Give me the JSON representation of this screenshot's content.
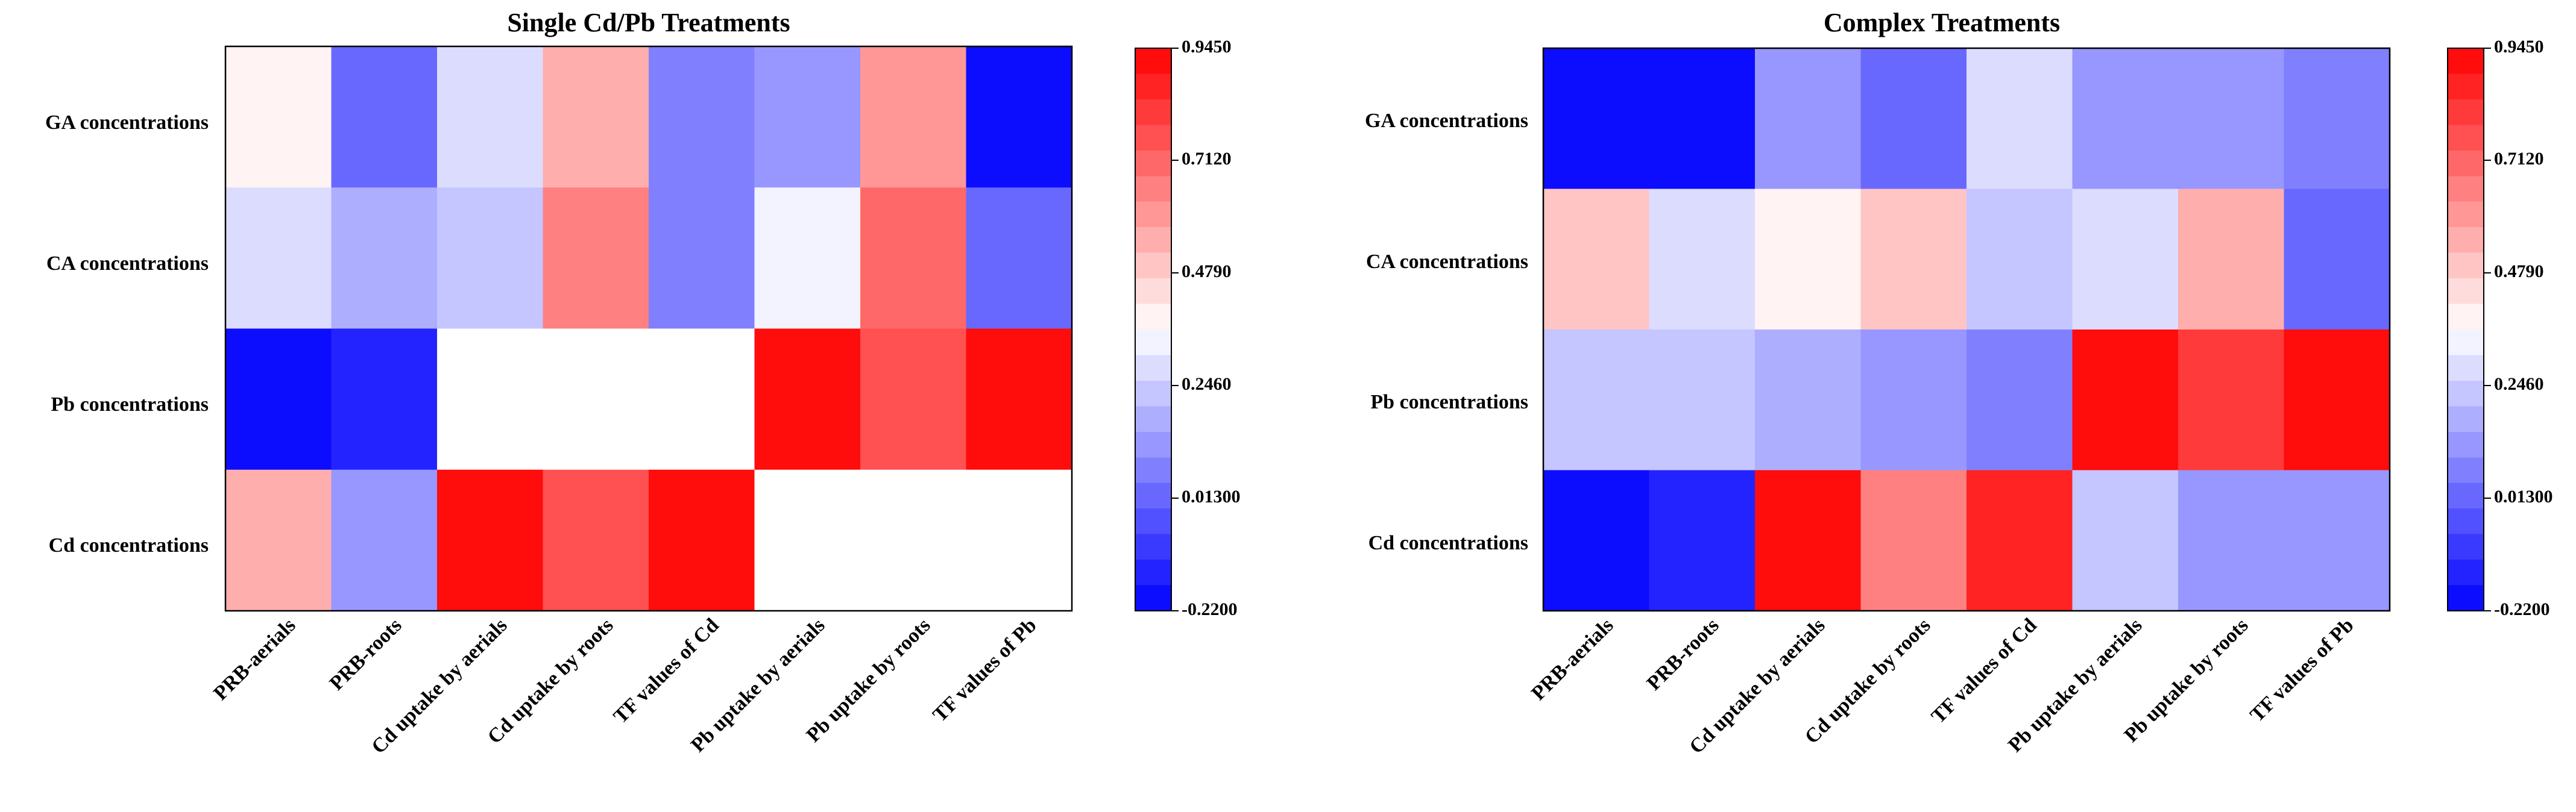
{
  "figure": {
    "background": "#ffffff",
    "colormap": {
      "name": "bwr",
      "low": "#0000ff",
      "mid": "#ffffff",
      "high": "#ff0000",
      "levels": 22
    }
  },
  "chart_data": [
    {
      "type": "heatmap",
      "title": "Single Cd/Pb Treatments",
      "xlabel": "",
      "ylabel": "",
      "x_categories": [
        "PRB-aerials",
        "PRB-roots",
        "Cd uptake by aerials",
        "Cd uptake by roots",
        "TF values of Cd",
        "Pb uptake by aerials",
        "Pb uptake by roots",
        "TF values of Pb"
      ],
      "y_categories": [
        "GA concentrations",
        "CA concentrations",
        "Pb concentrations",
        "Cd concentrations"
      ],
      "values": [
        [
          0.38,
          0.02,
          0.26,
          0.56,
          0.07,
          0.12,
          0.6,
          -0.22
        ],
        [
          0.26,
          0.19,
          0.24,
          0.63,
          0.05,
          0.34,
          0.71,
          0.02
        ],
        [
          -0.22,
          -0.15,
          null,
          null,
          null,
          0.95,
          0.76,
          0.92
        ],
        [
          0.55,
          0.14,
          0.945,
          0.76,
          0.94,
          null,
          null,
          null
        ]
      ],
      "colorbar": {
        "vmin": -0.22,
        "vmax": 0.945,
        "ticks": [
          0.945,
          0.712,
          0.479,
          0.246,
          0.013,
          -0.22
        ],
        "tick_labels": [
          "0.9450",
          "0.7120",
          "0.4790",
          "0.2460",
          "0.01300",
          "-0.2200"
        ]
      },
      "grid": false
    },
    {
      "type": "heatmap",
      "title": "Complex Treatments",
      "xlabel": "",
      "ylabel": "",
      "x_categories": [
        "PRB-aerials",
        "PRB-roots",
        "Cd uptake by aerials",
        "Cd uptake by roots",
        "TF values of Cd",
        "Pb uptake by aerials",
        "Pb uptake by roots",
        "TF values of Pb"
      ],
      "y_categories": [
        "GA concentrations",
        "CA concentrations",
        "Pb concentrations",
        "Cd concentrations"
      ],
      "values": [
        [
          -0.22,
          -0.19,
          0.13,
          0.03,
          0.27,
          0.14,
          0.14,
          0.09
        ],
        [
          0.51,
          0.27,
          0.37,
          0.5,
          0.24,
          0.27,
          0.53,
          0.03
        ],
        [
          0.25,
          0.25,
          0.2,
          0.13,
          0.06,
          0.945,
          0.8,
          0.945
        ],
        [
          -0.22,
          -0.14,
          0.9,
          0.67,
          0.87,
          0.21,
          0.14,
          0.1
        ]
      ],
      "colorbar": {
        "vmin": -0.22,
        "vmax": 0.945,
        "ticks": [
          0.945,
          0.712,
          0.479,
          0.246,
          0.013,
          -0.22
        ],
        "tick_labels": [
          "0.9450",
          "0.7120",
          "0.4790",
          "0.2460",
          "0.01300",
          "-0.2200"
        ]
      },
      "grid": false
    }
  ]
}
